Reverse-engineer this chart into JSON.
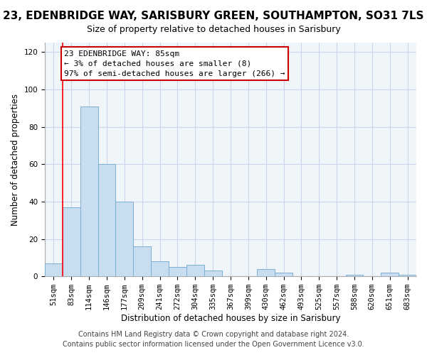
{
  "title": "23, EDENBRIDGE WAY, SARISBURY GREEN, SOUTHAMPTON, SO31 7LS",
  "subtitle": "Size of property relative to detached houses in Sarisbury",
  "xlabel": "Distribution of detached houses by size in Sarisbury",
  "ylabel": "Number of detached properties",
  "bar_labels": [
    "51sqm",
    "83sqm",
    "114sqm",
    "146sqm",
    "177sqm",
    "209sqm",
    "241sqm",
    "272sqm",
    "304sqm",
    "335sqm",
    "367sqm",
    "399sqm",
    "430sqm",
    "462sqm",
    "493sqm",
    "525sqm",
    "557sqm",
    "588sqm",
    "620sqm",
    "651sqm",
    "683sqm"
  ],
  "bar_heights": [
    7,
    37,
    91,
    60,
    40,
    16,
    8,
    5,
    6,
    3,
    0,
    0,
    4,
    2,
    0,
    0,
    0,
    1,
    0,
    2,
    1
  ],
  "bar_color": "#c9ddf0",
  "bar_edge_color": "#7bafd4",
  "ylim": [
    0,
    125
  ],
  "yticks": [
    0,
    20,
    40,
    60,
    80,
    100,
    120
  ],
  "annotation_box_text": "23 EDENBRIDGE WAY: 85sqm\n← 3% of detached houses are smaller (8)\n97% of semi-detached houses are larger (266) →",
  "footer_line1": "Contains HM Land Registry data © Crown copyright and database right 2024.",
  "footer_line2": "Contains public sector information licensed under the Open Government Licence v3.0.",
  "red_line_bar_index": 1,
  "box_facecolor": "#ffffff",
  "box_edgecolor": "#cc0000",
  "title_fontsize": 11,
  "subtitle_fontsize": 9,
  "axis_label_fontsize": 8.5,
  "tick_fontsize": 7.5,
  "annotation_fontsize": 8.0,
  "footer_fontsize": 7.0,
  "grid_color": "#c8d8ea",
  "background_color": "#f0f5fa"
}
